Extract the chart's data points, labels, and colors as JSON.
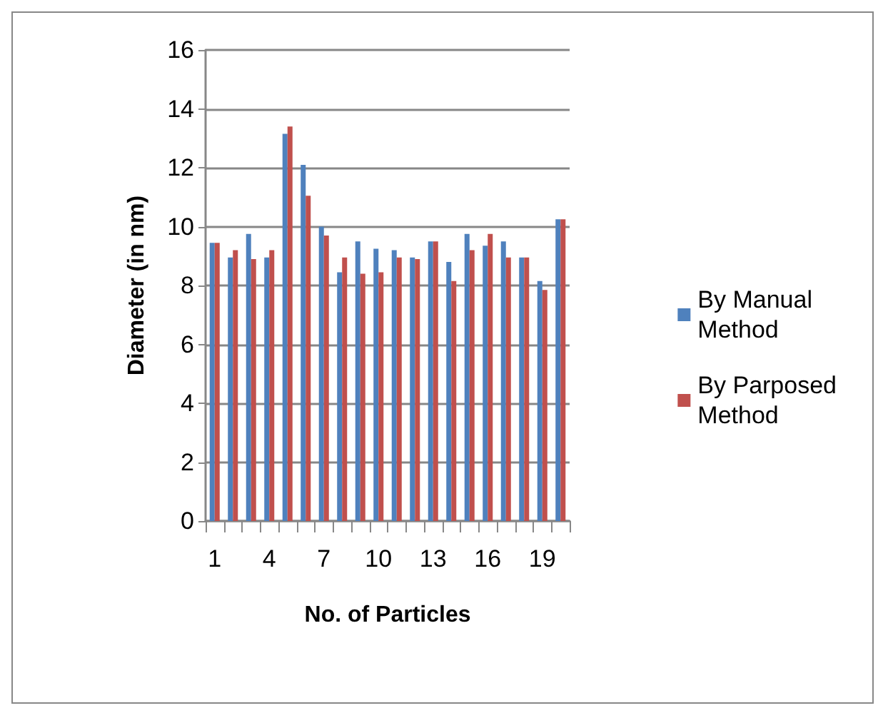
{
  "chart_data": {
    "type": "bar",
    "xlabel": "No. of Particles",
    "ylabel": "Diameter (in nm)",
    "categories": [
      "1",
      null,
      null,
      "4",
      null,
      null,
      "7",
      null,
      null,
      "10",
      null,
      null,
      "13",
      null,
      null,
      "16",
      null,
      null,
      "19",
      null
    ],
    "series": [
      {
        "name": "By Manual Method",
        "color": "#4f81bd",
        "values": [
          9.45,
          8.95,
          9.75,
          8.95,
          13.15,
          12.1,
          10.0,
          8.45,
          9.5,
          9.25,
          9.2,
          8.95,
          9.5,
          8.8,
          9.75,
          9.35,
          9.5,
          8.95,
          8.15,
          10.25
        ]
      },
      {
        "name": "By Parposed Method",
        "color": "#c0504d",
        "values": [
          9.45,
          9.2,
          8.9,
          9.2,
          13.4,
          11.05,
          9.7,
          8.95,
          8.4,
          8.45,
          8.95,
          8.9,
          9.5,
          8.15,
          9.2,
          9.75,
          8.95,
          8.95,
          7.85,
          10.25
        ]
      }
    ],
    "ylim": [
      0,
      16
    ],
    "yticks": [
      0,
      2,
      4,
      6,
      8,
      10,
      12,
      14,
      16
    ],
    "grid": "y",
    "legend": "right"
  }
}
